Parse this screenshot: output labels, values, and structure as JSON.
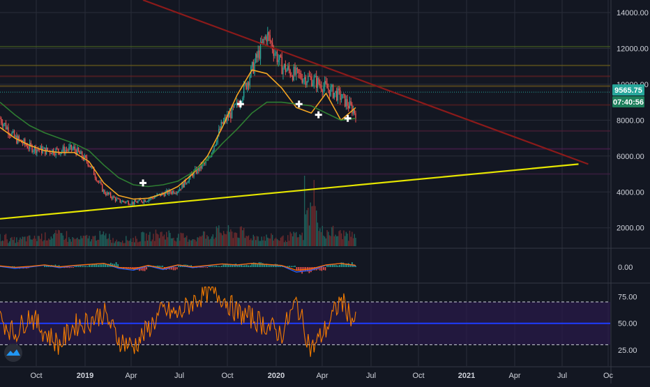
{
  "chart_data": [
    {
      "type": "candlestick",
      "title": "",
      "price_axis": {
        "ticks": [
          "14000.00",
          "12000.00",
          "10000.00",
          "8000.00",
          "6000.00",
          "4000.00",
          "2000.00"
        ],
        "tick_values": [
          14000,
          12000,
          10000,
          8000,
          6000,
          4000,
          2000
        ],
        "ylim": [
          900,
          14700
        ]
      },
      "last_price": "9565.75",
      "countdown": "07:40:56",
      "x_axis": {
        "ticks": [
          "Oct",
          "2019",
          "Apr",
          "Jul",
          "Oct",
          "2020",
          "Apr",
          "Jul",
          "Oct",
          "2021",
          "Apr",
          "Jul",
          "Oc"
        ],
        "bold": [
          false,
          true,
          false,
          false,
          false,
          true,
          false,
          false,
          false,
          true,
          false,
          false,
          false
        ]
      },
      "price_series": {
        "x": [
          0,
          1,
          2,
          3,
          4,
          5,
          6,
          7,
          8,
          9,
          10,
          11,
          12,
          13,
          14,
          15,
          16,
          17,
          18,
          19,
          20,
          21,
          22,
          23,
          24
        ],
        "close": [
          8100,
          7000,
          6500,
          6300,
          6300,
          6400,
          5600,
          4000,
          3500,
          3400,
          3600,
          3900,
          4100,
          5000,
          5700,
          7800,
          8800,
          10800,
          12800,
          11000,
          10500,
          10300,
          9800,
          9300,
          8400
        ],
        "note": "monthly approximate path from Aug 2018 to Jun 2020"
      },
      "volume_series": [
        55,
        40,
        48,
        60,
        70,
        45,
        52,
        66,
        38,
        44,
        62,
        75,
        58,
        49,
        72,
        90,
        85,
        60,
        55,
        48,
        63,
        200,
        92,
        75,
        66
      ],
      "moving_averages": [
        {
          "name": "",
          "color": "#f5a623",
          "values": [
            7600,
            7000,
            6600,
            6300,
            6200,
            6200,
            5700,
            4500,
            3800,
            3600,
            3650,
            3900,
            4300,
            5000,
            6000,
            7600,
            9400,
            10800,
            10600,
            9800,
            8700,
            8400,
            9500,
            8000,
            8700
          ]
        },
        {
          "name": "",
          "color": "#2e7d32",
          "values": [
            9000,
            8300,
            7700,
            7300,
            7000,
            6700,
            6300,
            5500,
            4800,
            4400,
            4300,
            4400,
            4600,
            5100,
            5800,
            6700,
            7500,
            8400,
            9000,
            9000,
            8900,
            8800,
            8400,
            8000,
            8100
          ]
        }
      ],
      "horizontal_levels": [
        {
          "value": 12100,
          "color": "#4e6b1f"
        },
        {
          "value": 11050,
          "color": "#7a6a1a"
        },
        {
          "value": 10450,
          "color": "#7a2323"
        },
        {
          "value": 9900,
          "color": "#8a6a1a"
        },
        {
          "value": 8850,
          "color": "#6b1f1f"
        },
        {
          "value": 7400,
          "color": "#5a1f3a"
        },
        {
          "value": 6400,
          "color": "#5a1f5a"
        },
        {
          "value": 5000,
          "color": "#4a1f4a"
        }
      ],
      "trendlines": [
        {
          "name": "",
          "color": "#8b1a1a",
          "from": [
            0.22,
            14700
          ],
          "to": [
            0.905,
            5550
          ]
        },
        {
          "name": "",
          "color": "#e6e600",
          "from": [
            0.0,
            2500
          ],
          "to": [
            0.89,
            5550
          ]
        }
      ],
      "markers": [
        {
          "x": 0.22,
          "y": 4500
        },
        {
          "x": 0.37,
          "y": 8900
        },
        {
          "x": 0.46,
          "y": 8900
        },
        {
          "x": 0.49,
          "y": 8300
        },
        {
          "x": 0.535,
          "y": 8100
        }
      ]
    },
    {
      "type": "macd",
      "axis": {
        "ticks": [
          "0.00"
        ]
      },
      "macd_color": "#2962ff",
      "signal_color": "#ff6d00",
      "values": [
        0.1,
        -0.2,
        0.0,
        0.3,
        -0.1,
        0.2,
        0.4,
        0.6,
        -0.2,
        -0.5,
        0.2,
        -0.4,
        0.3,
        -0.1,
        0.2,
        0.5,
        0.3,
        0.6,
        0.4,
        0.2,
        -0.8,
        -0.5,
        0.3,
        0.6,
        0.2
      ]
    },
    {
      "type": "rsi",
      "axis": {
        "ticks": [
          "75.00",
          "50.00",
          "25.00"
        ],
        "tick_values": [
          75,
          50,
          25
        ],
        "ylim": [
          10,
          87
        ]
      },
      "upper_band": 70,
      "mid_line": 50,
      "lower_band": 30,
      "line_color": "#f57c00",
      "values": [
        55,
        40,
        58,
        42,
        30,
        48,
        52,
        60,
        35,
        28,
        45,
        62,
        58,
        70,
        80,
        75,
        60,
        55,
        48,
        40,
        70,
        25,
        45,
        72,
        50
      ]
    }
  ],
  "colors": {
    "background": "#131722",
    "grid": "#2a2e39",
    "up": "#26a69a",
    "down": "#ef5350",
    "last_price_badge": "#26a69a",
    "countdown_badge": "#26a69a",
    "rsi_band_fill": "#2a1a4a",
    "rsi_midline": "#1e3cff"
  },
  "icons": {
    "logo": "tradingview-logo-icon"
  }
}
